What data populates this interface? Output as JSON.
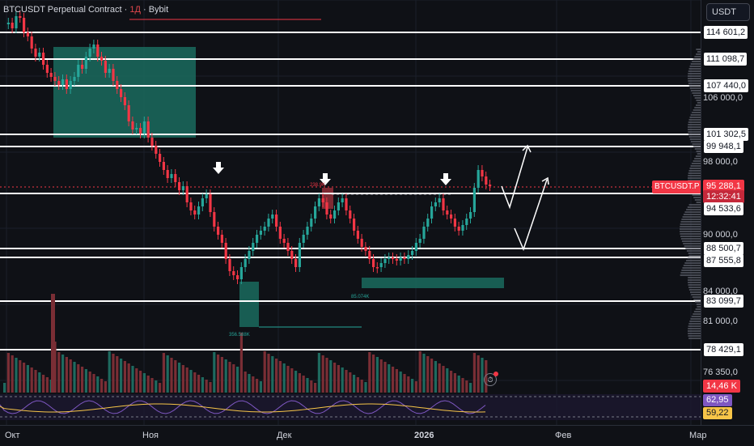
{
  "header": {
    "title": "BTCUSDT Perpetual Contract · 1Д · Bybit",
    "title_left": "BTCUSDT Perpetual Contract",
    "interval": "1Д",
    "exchange": "Bybit"
  },
  "price_scale": {
    "currency": "USDT",
    "levels": [
      "114 601,2",
      "111 098,7",
      "107 440,0",
      "101 302,5",
      "99 948,1",
      "94 533,6",
      "88 500,7",
      "87 555,8",
      "83 099,7",
      "78 429,1"
    ],
    "ticks": [
      "106 000,0",
      "98 000,0",
      "90 000,0",
      "84 000,0",
      "81 000,0",
      "76 350,0"
    ],
    "current_price": "95 288,1",
    "countdown": "12:32:41",
    "symbol_tag": "BTCUSDT.P",
    "volume_label": "14,46 K",
    "rsi_value": "62,95",
    "rsi_ma_value": "59,22"
  },
  "time_axis": {
    "labels": [
      "Окт",
      "Ноя",
      "Дек",
      "2026",
      "Фев",
      "Мар"
    ]
  },
  "annotations": {
    "vol_1": "356.588K",
    "vol_2": "85.074K",
    "vol_3": "238.9K"
  },
  "colors": {
    "up": "#26a69a",
    "down": "#f23645",
    "level_line": "#ffffff",
    "zone": "#1a6b5e"
  },
  "icons": {
    "alert": "alert-clock-icon"
  }
}
